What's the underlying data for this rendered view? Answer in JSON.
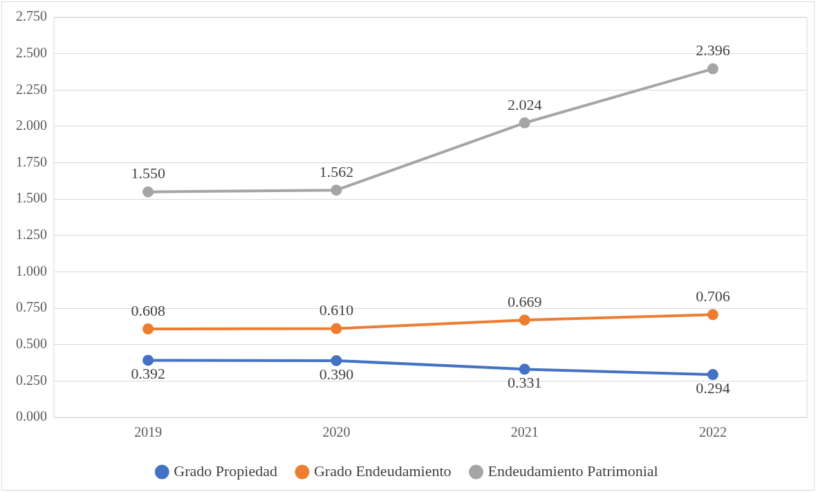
{
  "chart_data": {
    "type": "line",
    "categories": [
      "2019",
      "2020",
      "2021",
      "2022"
    ],
    "series": [
      {
        "name": "Grado Propiedad",
        "color": "#4472c4",
        "values": [
          0.392,
          0.39,
          0.331,
          0.294
        ],
        "value_labels": [
          "0.392",
          "0.390",
          "0.331",
          "0.294"
        ]
      },
      {
        "name": "Grado Endeudamiento",
        "color": "#ed7d31",
        "values": [
          0.608,
          0.61,
          0.669,
          0.706
        ],
        "value_labels": [
          "0.608",
          "0.610",
          "0.669",
          "0.706"
        ]
      },
      {
        "name": "Endeudamiento Patrimonial",
        "color": "#a5a5a5",
        "values": [
          1.55,
          1.562,
          2.024,
          2.396
        ],
        "value_labels": [
          "1.550",
          "1.562",
          "2.024",
          "2.396"
        ]
      }
    ],
    "ylim": [
      0,
      2.75
    ],
    "yticks": [
      {
        "value": 0,
        "label": "0.000"
      },
      {
        "value": 0.25,
        "label": "0.250"
      },
      {
        "value": 0.5,
        "label": "0.500"
      },
      {
        "value": 0.75,
        "label": "0.750"
      },
      {
        "value": 1,
        "label": "1.000"
      },
      {
        "value": 1.25,
        "label": "1.250"
      },
      {
        "value": 1.5,
        "label": "1.500"
      },
      {
        "value": 1.75,
        "label": "1.750"
      },
      {
        "value": 2,
        "label": "2.000"
      },
      {
        "value": 2.25,
        "label": "2.250"
      },
      {
        "value": 2.5,
        "label": "2.500"
      },
      {
        "value": 2.75,
        "label": "2.750"
      }
    ],
    "grid": "y",
    "legend": "bottom",
    "marker": "circle",
    "line_style": "solid"
  }
}
